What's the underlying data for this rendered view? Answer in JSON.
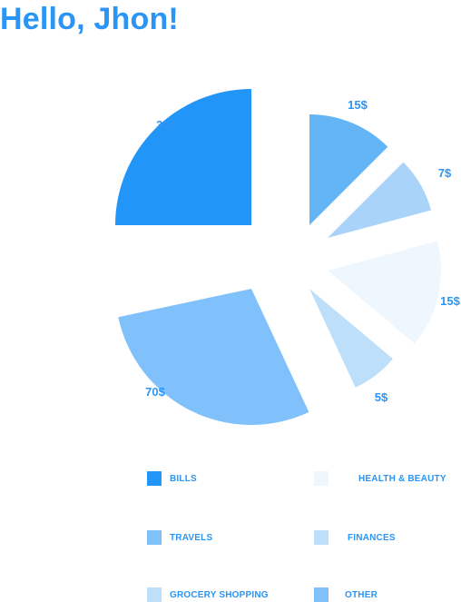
{
  "header": {
    "greeting": "Hello, Jhon!"
  },
  "chart_data": {
    "type": "pie",
    "variant": "exploded",
    "slices": [
      {
        "label": "30$",
        "value": 30,
        "color": "#2196f8"
      },
      {
        "label": "15$",
        "value": 15,
        "color": "#64b5f6"
      },
      {
        "label": "7$",
        "value": 7,
        "color": "#a9d3f9"
      },
      {
        "label": "15$",
        "value": 15,
        "color": "#eef6fe"
      },
      {
        "label": "5$",
        "value": 5,
        "color": "#bedff9"
      },
      {
        "label": "70$",
        "value": 70,
        "color": "#80c1fb"
      }
    ]
  },
  "legend": {
    "items": [
      {
        "label": "BILLS",
        "color": "#2196f8"
      },
      {
        "label": "HEALTH & BEAUTY",
        "color": "#eef6fe"
      },
      {
        "label": "TRAVELS",
        "color": "#80c1fb"
      },
      {
        "label": "FINANCES",
        "color": "#bedff9"
      },
      {
        "label": "GROCERY SHOPPING",
        "color": "#bedff9"
      },
      {
        "label": "OTHER",
        "color": "#80c1fb"
      }
    ]
  }
}
